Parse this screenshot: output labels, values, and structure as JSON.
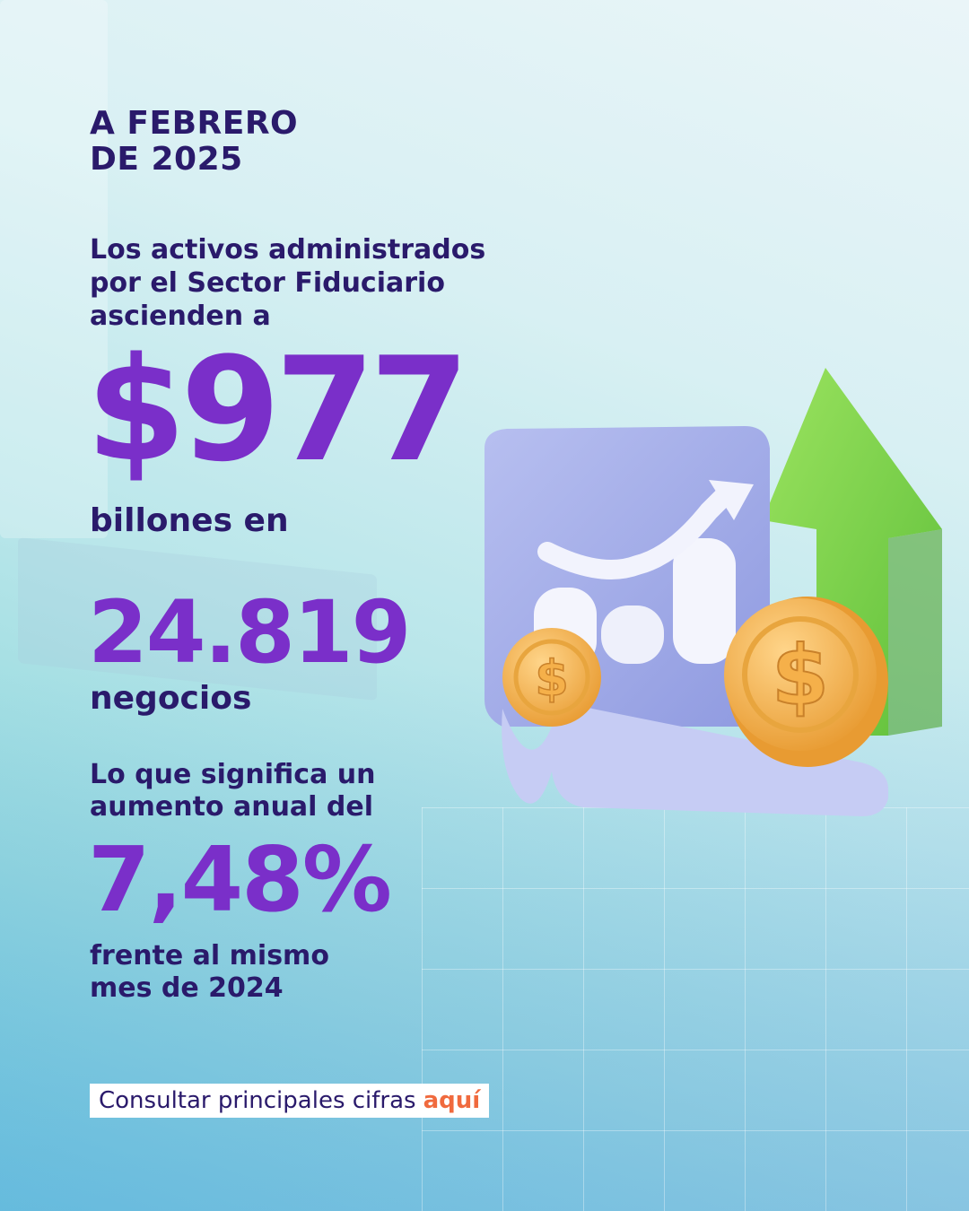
{
  "header": {
    "line1": "A FEBRERO",
    "line2": "DE 2025"
  },
  "intro": {
    "line1": "Los activos administrados",
    "line2": "por el Sector Fiduciario",
    "line3": "ascienden a"
  },
  "amount": {
    "value": "$977",
    "suffix": "billones en"
  },
  "businesses": {
    "value": "24.819",
    "label": "negocios"
  },
  "growth": {
    "intro_line1": "Lo que significa un",
    "intro_line2": "aumento anual del",
    "value": "7,48%",
    "compare_line1": "frente al mismo",
    "compare_line2": "mes de 2024"
  },
  "cta": {
    "text": "Consultar principales cifras",
    "link": "aquí"
  },
  "colors": {
    "accent": "#7a2fc9",
    "text": "#2a1a6b",
    "link": "#f06a3e",
    "arrow": "#7fd14a",
    "coin": "#f2b14a"
  },
  "icons": [
    "growth-chart-illustration",
    "up-arrow-icon",
    "dollar-coin-icon"
  ]
}
